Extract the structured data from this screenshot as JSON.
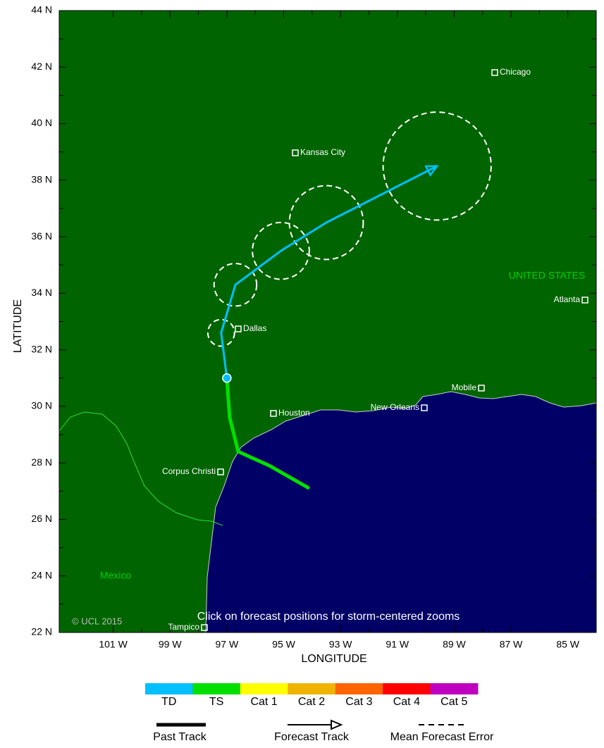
{
  "map": {
    "xlabel": "LONGITUDE",
    "ylabel": "LATITUDE",
    "xlim": [
      -102.9,
      -84.0
    ],
    "ylim": [
      22,
      44
    ],
    "xticks": [
      {
        "value": -101,
        "label": "101 W"
      },
      {
        "value": -99,
        "label": "99 W"
      },
      {
        "value": -97,
        "label": "97 W"
      },
      {
        "value": -95,
        "label": "95 W"
      },
      {
        "value": -93,
        "label": "93 W"
      },
      {
        "value": -91,
        "label": "91 W"
      },
      {
        "value": -89,
        "label": "89 W"
      },
      {
        "value": -87,
        "label": "87 W"
      },
      {
        "value": -85,
        "label": "85 W"
      }
    ],
    "yticks": [
      {
        "value": 22,
        "label": "22 N"
      },
      {
        "value": 24,
        "label": "24 N"
      },
      {
        "value": 26,
        "label": "26 N"
      },
      {
        "value": 28,
        "label": "28 N"
      },
      {
        "value": 30,
        "label": "30 N"
      },
      {
        "value": 32,
        "label": "32 N"
      },
      {
        "value": 34,
        "label": "34 N"
      },
      {
        "value": 36,
        "label": "36 N"
      },
      {
        "value": 38,
        "label": "38 N"
      },
      {
        "value": 40,
        "label": "40 N"
      },
      {
        "value": 42,
        "label": "42 N"
      },
      {
        "value": 44,
        "label": "44 N"
      }
    ],
    "regions": [
      "UNITED STATES",
      "Mexico"
    ],
    "cities": [
      "Chicago",
      "Kansas City",
      "Dallas",
      "Houston",
      "New Orleans",
      "Mobile",
      "Atlanta",
      "Corpus Christi",
      "Tampico"
    ],
    "copyright": "© UCL 2015",
    "note": "Click on forecast positions for storm-centered zooms",
    "track": {
      "past": {
        "lon": [
          -94.1,
          -95.5,
          -96.6,
          -96.9,
          -97.0
        ],
        "lat": [
          27.1,
          27.9,
          28.4,
          29.6,
          31.0
        ],
        "color": "#00e000"
      },
      "forecast": {
        "lon": [
          -97.0,
          -97.2,
          -96.7,
          -95.1,
          -93.5,
          -89.6
        ],
        "lat": [
          31.0,
          32.6,
          34.3,
          35.5,
          36.5,
          38.5
        ],
        "error_radius": [
          null,
          0.47,
          0.75,
          1.0,
          1.3,
          1.9
        ],
        "color": "#00bfff"
      }
    }
  },
  "legend": {
    "categories": [
      {
        "label": "TD",
        "color": "#00bfff"
      },
      {
        "label": "TS",
        "color": "#00e000"
      },
      {
        "label": "Cat 1",
        "color": "#ffff00"
      },
      {
        "label": "Cat 2",
        "color": "#f0b400"
      },
      {
        "label": "Cat 3",
        "color": "#ff6400"
      },
      {
        "label": "Cat 4",
        "color": "#ff0000"
      },
      {
        "label": "Cat 5",
        "color": "#c000c0"
      }
    ],
    "tracks": [
      "Past Track",
      "Forecast Track",
      "Mean Forecast Error"
    ]
  }
}
